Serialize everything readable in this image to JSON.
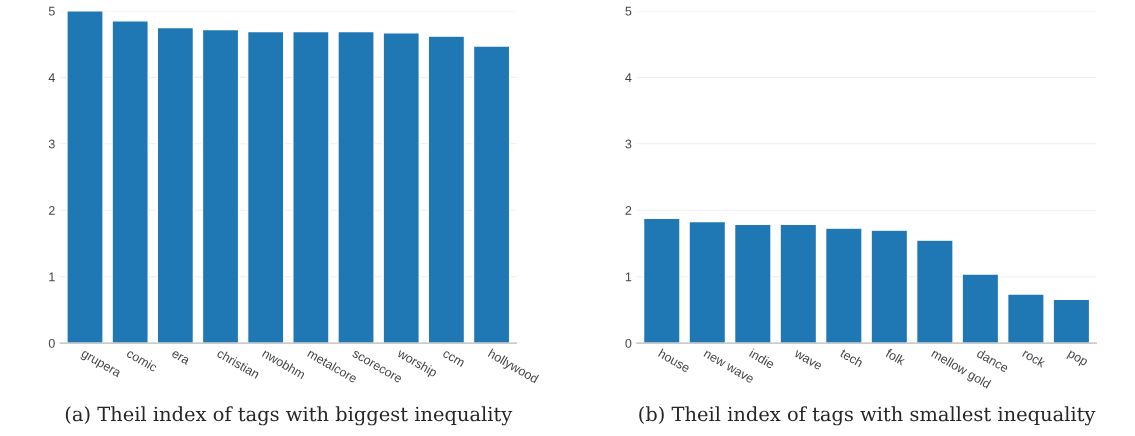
{
  "chart_data": [
    {
      "type": "bar",
      "title": "(a) Theil index of tags with biggest inequality",
      "categories": [
        "grupera",
        "comic",
        "era",
        "christian",
        "nwobhm",
        "metalcore",
        "scorecore",
        "worship",
        "ccm",
        "hollywood"
      ],
      "values": [
        5.0,
        4.85,
        4.75,
        4.72,
        4.69,
        4.69,
        4.69,
        4.67,
        4.62,
        4.47
      ],
      "color": "#1f77b4",
      "ylim": [
        0,
        5
      ],
      "yticks": [
        0,
        1,
        2,
        3,
        4,
        5
      ],
      "grid": "y"
    },
    {
      "type": "bar",
      "title": "(b) Theil index of tags with smallest inequality",
      "categories": [
        "house",
        "new wave",
        "indie",
        "wave",
        "tech",
        "folk",
        "mellow gold",
        "dance",
        "rock",
        "pop"
      ],
      "values": [
        1.88,
        1.83,
        1.79,
        1.79,
        1.73,
        1.7,
        1.55,
        1.04,
        0.74,
        0.66
      ],
      "color": "#1f77b4",
      "ylim": [
        0,
        5
      ],
      "yticks": [
        0,
        1,
        2,
        3,
        4,
        5
      ],
      "grid": "y"
    }
  ]
}
